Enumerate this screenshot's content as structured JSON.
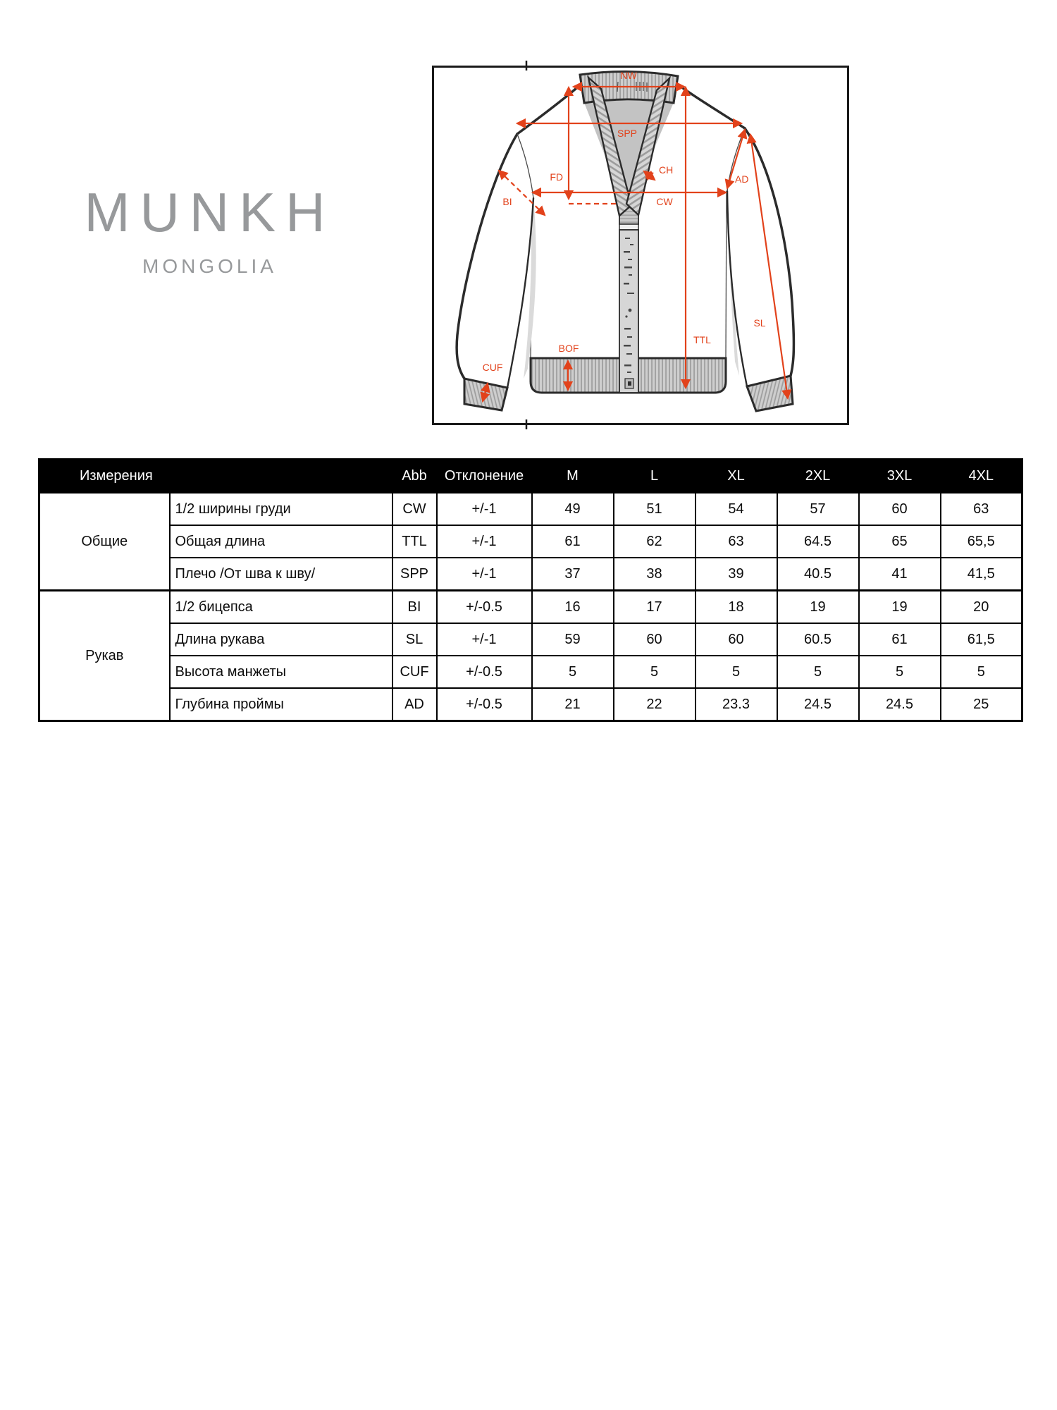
{
  "logo": {
    "brand": "MUNKH",
    "subtitle": "MONGOLIA",
    "color": "#97999b"
  },
  "diagram": {
    "accent": "#e2421b",
    "labels": {
      "nw": "NW",
      "spp": "SPP",
      "fd": "FD",
      "ch": "CH",
      "bi": "BI",
      "cw": "CW",
      "ad": "AD",
      "ttl": "TTL",
      "sl": "SL",
      "bof": "BOF",
      "cuf": "CUF"
    }
  },
  "table": {
    "header": {
      "measurements": "Измерения",
      "abb": "Abb",
      "deviation": "Отклонение",
      "sizes": [
        "M",
        "L",
        "XL",
        "2XL",
        "3XL",
        "4XL"
      ]
    },
    "groups": [
      {
        "name": "Общие",
        "rows": [
          {
            "label": "1/2 ширины груди",
            "abb": "CW",
            "dev": "+/-1",
            "values": [
              "49",
              "51",
              "54",
              "57",
              "60",
              "63"
            ]
          },
          {
            "label": "Общая длина",
            "abb": "TTL",
            "dev": "+/-1",
            "values": [
              "61",
              "62",
              "63",
              "64.5",
              "65",
              "65,5"
            ]
          },
          {
            "label": "Плечо /От шва к шву/",
            "abb": "SPP",
            "dev": "+/-1",
            "values": [
              "37",
              "38",
              "39",
              "40.5",
              "41",
              "41,5"
            ]
          }
        ]
      },
      {
        "name": "Рукав",
        "rows": [
          {
            "label": "1/2 бицепса",
            "abb": "BI",
            "dev": "+/-0.5",
            "values": [
              "16",
              "17",
              "18",
              "19",
              "19",
              "20"
            ]
          },
          {
            "label": "Длина рукава",
            "abb": "SL",
            "dev": "+/-1",
            "values": [
              "59",
              "60",
              "60",
              "60.5",
              "61",
              "61,5"
            ]
          },
          {
            "label": "Высота манжеты",
            "abb": "CUF",
            "dev": "+/-0.5",
            "values": [
              "5",
              "5",
              "5",
              "5",
              "5",
              "5"
            ]
          },
          {
            "label": "Глубина проймы",
            "abb": "AD",
            "dev": "+/-0.5",
            "values": [
              "21",
              "22",
              "23.3",
              "24.5",
              "24.5",
              "25"
            ]
          }
        ]
      }
    ]
  }
}
